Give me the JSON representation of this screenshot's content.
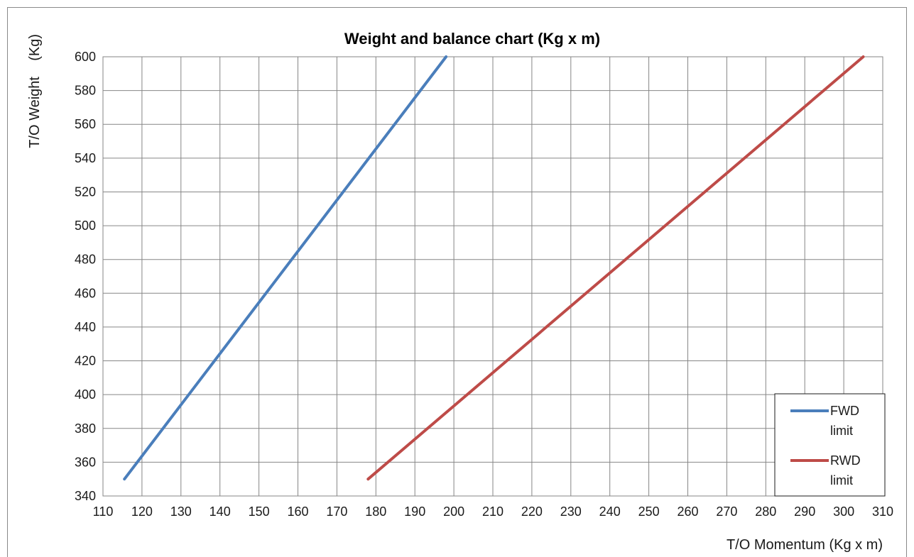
{
  "chart_data": {
    "type": "line",
    "title": "Weight and balance chart (Kg x m)",
    "xlabel": "T/O Momentum (Kg x m)",
    "ylabel": "T/O Weight    (Kg)",
    "xlim": [
      110,
      310
    ],
    "ylim": [
      340,
      600
    ],
    "xticks": [
      110,
      120,
      130,
      140,
      150,
      160,
      170,
      180,
      190,
      200,
      210,
      220,
      230,
      240,
      250,
      260,
      270,
      280,
      290,
      300,
      310
    ],
    "yticks": [
      340,
      360,
      380,
      400,
      420,
      440,
      460,
      480,
      500,
      520,
      540,
      560,
      580,
      600
    ],
    "grid": true,
    "legend_position": "bottom-right",
    "series": [
      {
        "name": "FWD limit",
        "color": "#4a7ebb",
        "x": [
          115.5,
          198
        ],
        "y": [
          350,
          600
        ]
      },
      {
        "name": "RWD limit",
        "color": "#be4b48",
        "x": [
          178,
          305
        ],
        "y": [
          350,
          600
        ]
      }
    ]
  }
}
